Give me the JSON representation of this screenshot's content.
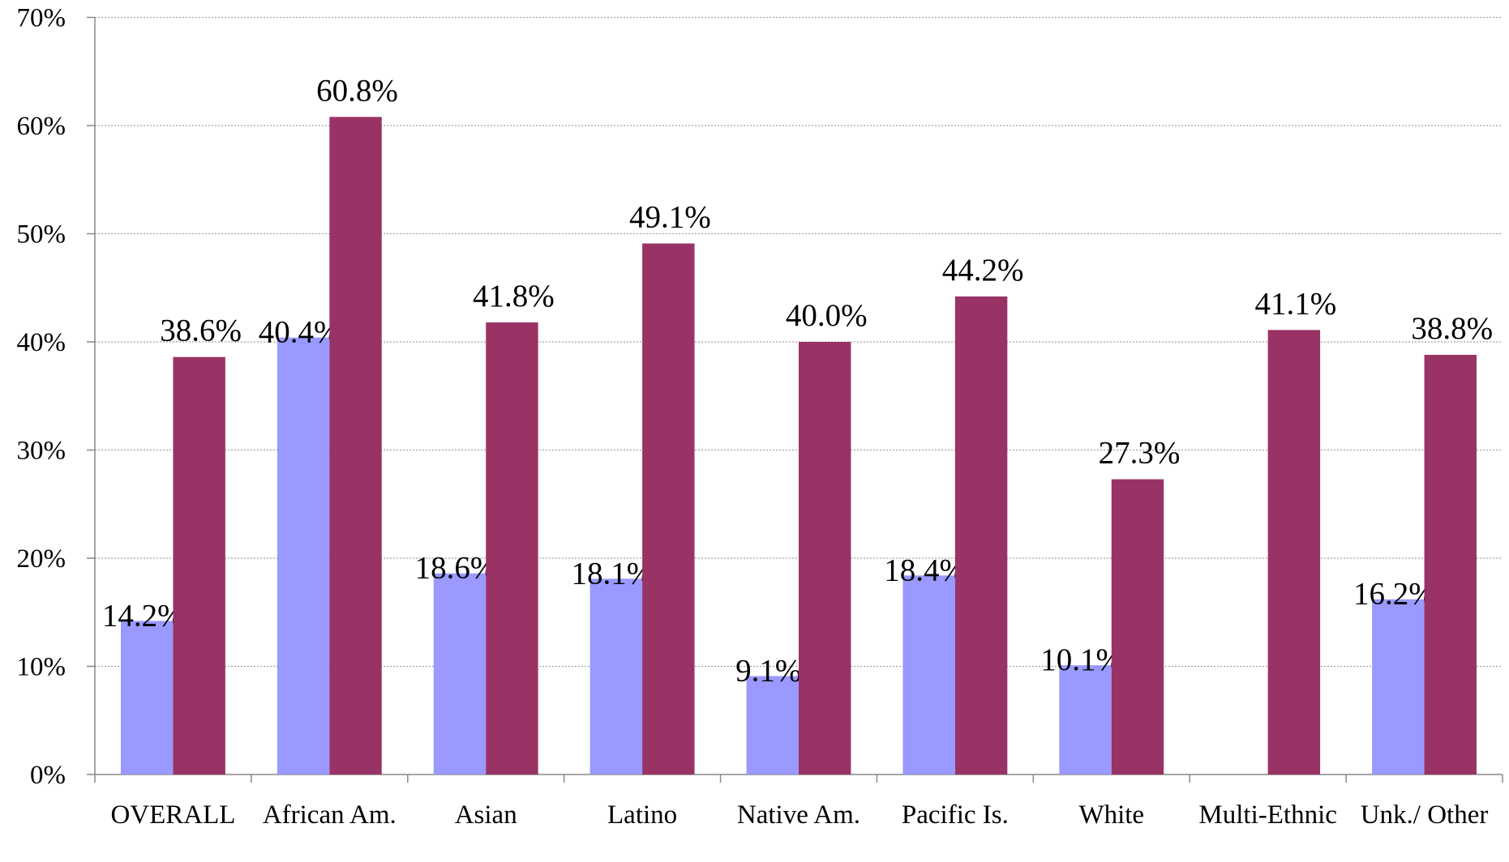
{
  "chart_data": {
    "type": "bar",
    "categories": [
      "OVERALL",
      "African Am.",
      "Asian",
      "Latino",
      "Native Am.",
      "Pacific Is.",
      "White",
      "Multi-Ethnic",
      "Unk./ Other"
    ],
    "series": [
      {
        "color": "#9999ff",
        "values": [
          14.2,
          40.4,
          18.6,
          18.1,
          9.1,
          18.4,
          10.1,
          null,
          16.2
        ],
        "value_labels": [
          "14.2%",
          "40.4%",
          "18.6%",
          "18.1%",
          "9.1%",
          "18.4%",
          "10.1%",
          null,
          "16.2%"
        ]
      },
      {
        "color": "#993366",
        "values": [
          38.6,
          60.8,
          41.8,
          49.1,
          40.0,
          44.2,
          27.3,
          41.1,
          38.8
        ],
        "value_labels": [
          "38.6%",
          "60.8%",
          "41.8%",
          "49.1%",
          "40.0%",
          "44.2%",
          "27.3%",
          "41.1%",
          "38.8%"
        ]
      }
    ],
    "ylim": [
      0,
      70
    ],
    "yticks": [
      {
        "value": 0,
        "label": "0%"
      },
      {
        "value": 10,
        "label": "10%"
      },
      {
        "value": 20,
        "label": "20%"
      },
      {
        "value": 30,
        "label": "30%"
      },
      {
        "value": 40,
        "label": "40%"
      },
      {
        "value": 50,
        "label": "50%"
      },
      {
        "value": 60,
        "label": "60%"
      },
      {
        "value": 70,
        "label": "70%"
      }
    ],
    "grid": true
  }
}
